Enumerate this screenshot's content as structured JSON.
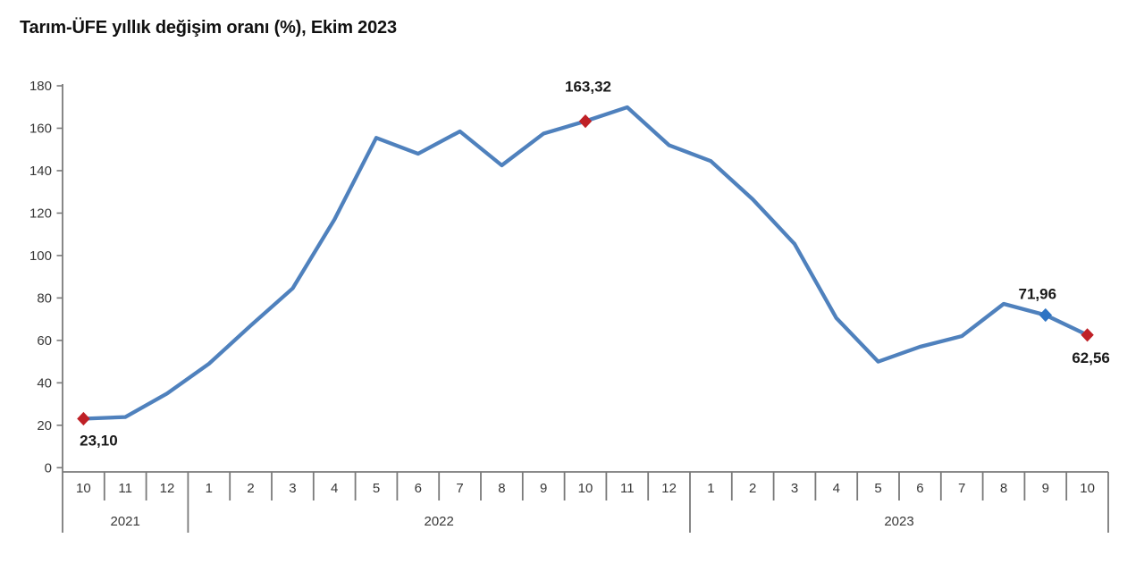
{
  "title": "Tarım-ÜFE yıllık değişim oranı (%), Ekim 2023",
  "chart_data": {
    "type": "line",
    "title": "Tarım-ÜFE yıllık değişim oranı (%), Ekim 2023",
    "series_name": "Tarım-ÜFE yıllık değişim oranı (%)",
    "x_month_labels": [
      "10",
      "11",
      "12",
      "1",
      "2",
      "3",
      "4",
      "5",
      "6",
      "7",
      "8",
      "9",
      "10",
      "11",
      "12",
      "1",
      "2",
      "3",
      "4",
      "5",
      "6",
      "7",
      "8",
      "9",
      "10"
    ],
    "year_groups": [
      {
        "label": "2021",
        "months": 3
      },
      {
        "label": "2022",
        "months": 12
      },
      {
        "label": "2023",
        "months": 10
      }
    ],
    "values": [
      23.1,
      23.9,
      35.0,
      49.0,
      67.0,
      84.5,
      117.0,
      155.5,
      148.0,
      158.5,
      142.5,
      157.5,
      163.32,
      169.9,
      152.0,
      144.5,
      126.5,
      105.5,
      70.5,
      50.0,
      57.0,
      62.0,
      77.2,
      71.96,
      62.56
    ],
    "ylim": [
      0,
      180
    ],
    "ytick_step": 20,
    "ytick_labels": [
      "0",
      "20",
      "40",
      "60",
      "80",
      "100",
      "120",
      "140",
      "160",
      "180"
    ],
    "grid": false,
    "legend_position": "none",
    "labeled_points": [
      {
        "index": 0,
        "label": "23,10",
        "marker": "diamond",
        "marker_color": "#bf2026",
        "label_offset": [
          17,
          30
        ]
      },
      {
        "index": 12,
        "label": "163,32",
        "marker": "diamond",
        "marker_color": "#bf2026",
        "label_offset": [
          3,
          -33
        ]
      },
      {
        "index": 23,
        "label": "71,96",
        "marker": "diamond",
        "marker_color": "#2e74c4",
        "label_offset": [
          -9,
          -18
        ]
      },
      {
        "index": 24,
        "label": "62,56",
        "marker": "diamond",
        "marker_color": "#bf2026",
        "label_offset": [
          4,
          31
        ]
      }
    ],
    "colors": {
      "line": "#4f81bd",
      "axis": "#7a7a7a",
      "tick_text": "#383838",
      "label_text": "#1a1a1a"
    }
  }
}
